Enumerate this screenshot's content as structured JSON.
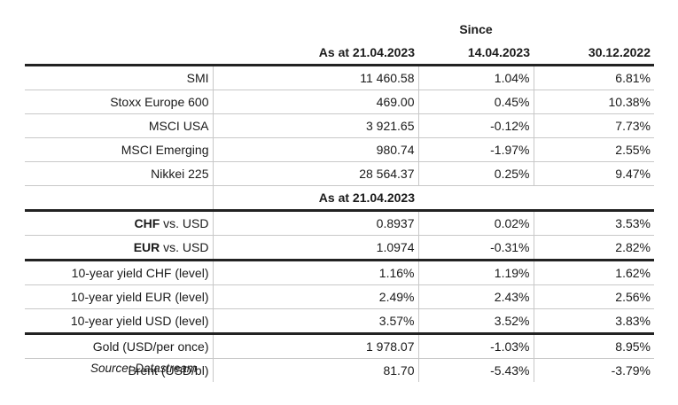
{
  "header": {
    "since_label": "Since",
    "col1": "As at 21.04.2023",
    "col2": "14.04.2023",
    "col3": "30.12.2022"
  },
  "indices": [
    {
      "label": "SMI",
      "v1": "11 460.58",
      "v2": "1.04%",
      "v3": "6.81%"
    },
    {
      "label": "Stoxx Europe 600",
      "v1": "469.00",
      "v2": "0.45%",
      "v3": "10.38%"
    },
    {
      "label": "MSCI USA",
      "v1": "3 921.65",
      "v2": "-0.12%",
      "v3": "7.73%"
    },
    {
      "label": "MSCI Emerging",
      "v1": "980.74",
      "v2": "-1.97%",
      "v3": "2.55%"
    },
    {
      "label": "Nikkei 225",
      "v1": "28 564.37",
      "v2": "0.25%",
      "v3": "9.47%"
    }
  ],
  "subheader": {
    "label": "As at 21.04.2023"
  },
  "currencies": [
    {
      "ccy": "CHF",
      "rest": " vs. USD",
      "v1": "0.8937",
      "v2": "0.02%",
      "v3": "3.53%"
    },
    {
      "ccy": "EUR",
      "rest": " vs. USD",
      "v1": "1.0974",
      "v2": "-0.31%",
      "v3": "2.82%"
    }
  ],
  "yields": [
    {
      "label": "10-year yield CHF (level)",
      "v1": "1.16%",
      "v2": "1.19%",
      "v3": "1.62%"
    },
    {
      "label": "10-year yield EUR (level)",
      "v1": "2.49%",
      "v2": "2.43%",
      "v3": "2.56%"
    },
    {
      "label": "10-year yield USD (level)",
      "v1": "3.57%",
      "v2": "3.52%",
      "v3": "3.83%"
    }
  ],
  "commodities": [
    {
      "label": "Gold (USD/per once)",
      "v1": "1 978.07",
      "v2": "-1.03%",
      "v3": "8.95%"
    },
    {
      "label": "Brent (USD/bl)",
      "v1": "81.70",
      "v2": "-5.43%",
      "v3": "-3.79%"
    }
  ],
  "source": "Source: Datastream"
}
